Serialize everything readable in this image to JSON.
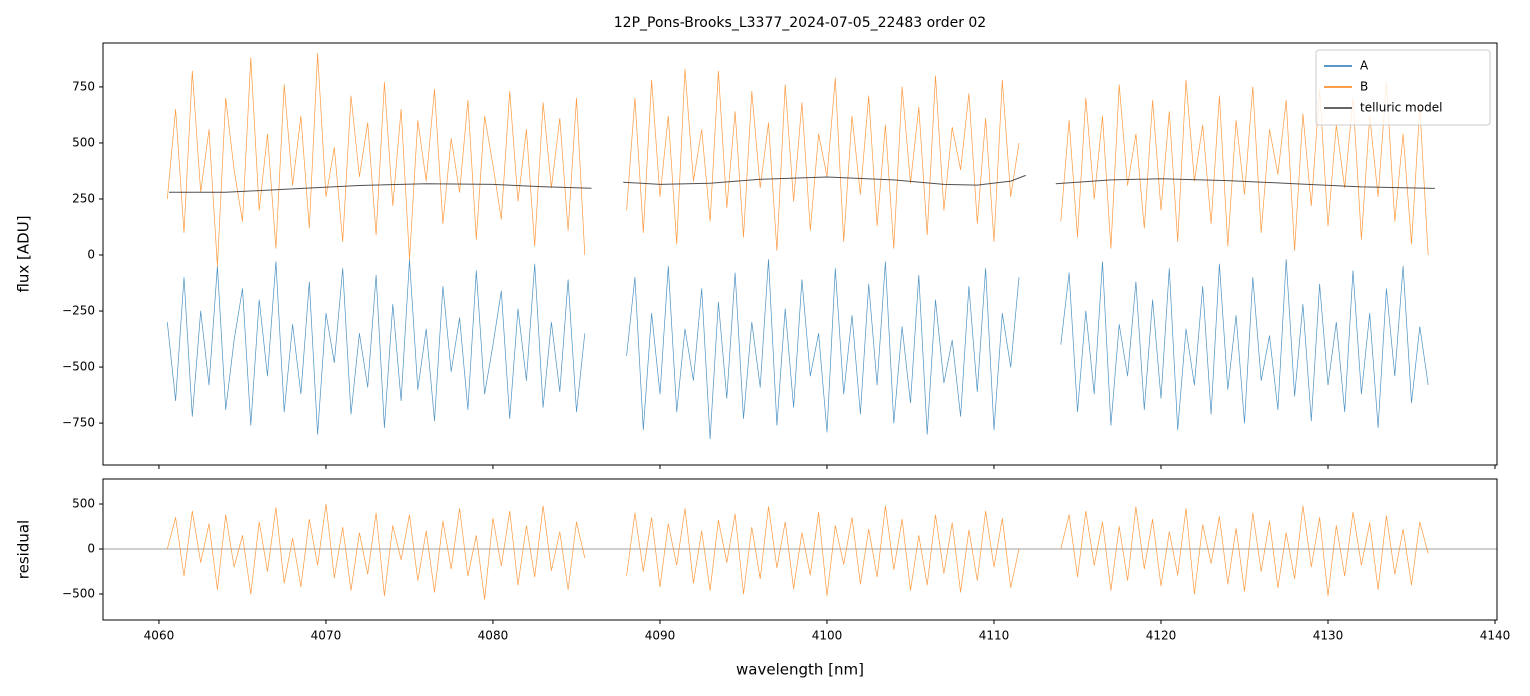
{
  "chart_data": [
    {
      "type": "line",
      "title": "12P_Pons-Brooks_L3377_2024-07-05_22483  order 02",
      "ylabel": "flux [ADU]",
      "xlim": [
        4056.65,
        4140.12
      ],
      "xticks": [
        4060,
        4070,
        4080,
        4090,
        4100,
        4110,
        4120,
        4130,
        4140
      ],
      "ylim": [
        -937,
        946
      ],
      "yticks": [
        {
          "value": -750,
          "label": "−750"
        },
        {
          "value": -500,
          "label": "−500"
        },
        {
          "value": -250,
          "label": "−250"
        },
        0,
        250,
        500,
        750
      ],
      "legend": "upper right",
      "x": [
        4060.5,
        4061,
        4061.5,
        4062,
        4062.5,
        4063,
        4063.5,
        4064,
        4064.5,
        4065,
        4065.5,
        4066,
        4066.5,
        4067,
        4067.5,
        4068,
        4068.5,
        4069,
        4069.5,
        4070,
        4070.5,
        4071,
        4071.5,
        4072,
        4072.5,
        4073,
        4073.5,
        4074,
        4074.5,
        4075,
        4075.5,
        4076,
        4076.5,
        4077,
        4077.5,
        4078,
        4078.5,
        4079,
        4079.5,
        4080,
        4080.5,
        4081,
        4081.5,
        4082,
        4082.5,
        4083,
        4083.5,
        4084,
        4084.5,
        4085,
        4085.5,
        4086.7,
        4088,
        4088.5,
        4089,
        4089.5,
        4090,
        4090.5,
        4091,
        4091.5,
        4092,
        4092.5,
        4093,
        4093.5,
        4094,
        4094.5,
        4095,
        4095.5,
        4096,
        4096.5,
        4097,
        4097.5,
        4098,
        4098.5,
        4099,
        4099.5,
        4100,
        4100.5,
        4101,
        4101.5,
        4102,
        4102.5,
        4103,
        4103.5,
        4104,
        4104.5,
        4105,
        4105.5,
        4106,
        4106.5,
        4107,
        4107.5,
        4108,
        4108.5,
        4109,
        4109.5,
        4110,
        4110.5,
        4111,
        4111.5,
        4112.6,
        4114,
        4114.5,
        4115,
        4115.5,
        4116,
        4116.5,
        4117,
        4117.5,
        4118,
        4118.5,
        4119,
        4119.5,
        4120,
        4120.5,
        4121,
        4121.5,
        4122,
        4122.5,
        4123,
        4123.5,
        4124,
        4124.5,
        4125,
        4125.5,
        4126,
        4126.5,
        4127,
        4127.5,
        4128,
        4128.5,
        4129,
        4129.5,
        4130,
        4130.5,
        4131,
        4131.5,
        4132,
        4132.5,
        4133,
        4133.5,
        4134,
        4134.5,
        4135,
        4135.5,
        4136
      ],
      "series": [
        {
          "name": "A",
          "color": "#1f77b4",
          "values": [
            -300,
            -650,
            -100,
            -720,
            -250,
            -580,
            -50,
            -690,
            -380,
            -150,
            -760,
            -200,
            -540,
            -30,
            -700,
            -310,
            -620,
            -120,
            -800,
            -260,
            -480,
            -60,
            -710,
            -350,
            -590,
            -90,
            -770,
            -220,
            -650,
            -20,
            -600,
            -330,
            -740,
            -140,
            -520,
            -280,
            -690,
            -70,
            -620,
            -400,
            -160,
            -730,
            -240,
            -560,
            -40,
            -680,
            -300,
            -610,
            -110,
            -700,
            -350,
            null,
            -450,
            -100,
            -780,
            -260,
            -620,
            -50,
            -700,
            -330,
            -560,
            -150,
            -820,
            -210,
            -640,
            -80,
            -730,
            -300,
            -590,
            -20,
            -760,
            -240,
            -680,
            -110,
            -540,
            -350,
            -790,
            -60,
            -620,
            -270,
            -710,
            -130,
            -580,
            -30,
            -750,
            -320,
            -660,
            -90,
            -800,
            -200,
            -570,
            -380,
            -720,
            -140,
            -610,
            -60,
            -780,
            -260,
            -500,
            -100,
            null,
            -400,
            -80,
            -700,
            -250,
            -620,
            -30,
            -760,
            -310,
            -540,
            -120,
            -690,
            -200,
            -640,
            -60,
            -780,
            -330,
            -580,
            -140,
            -710,
            -40,
            -600,
            -270,
            -750,
            -100,
            -560,
            -360,
            -690,
            -20,
            -630,
            -220,
            -740,
            -130,
            -580,
            -300,
            -700,
            -70,
            -620,
            -260,
            -770,
            -150,
            -540,
            -50,
            -660,
            -320,
            -580
          ]
        },
        {
          "name": "B",
          "color": "#ff7f0e",
          "values": [
            250,
            650,
            100,
            820,
            280,
            560,
            -50,
            700,
            380,
            150,
            880,
            200,
            540,
            30,
            760,
            310,
            620,
            120,
            900,
            260,
            480,
            60,
            710,
            350,
            590,
            90,
            770,
            220,
            650,
            -20,
            600,
            330,
            740,
            140,
            520,
            280,
            690,
            70,
            620,
            400,
            160,
            730,
            240,
            560,
            40,
            680,
            300,
            610,
            110,
            700,
            0,
            null,
            200,
            700,
            100,
            780,
            260,
            620,
            50,
            830,
            330,
            560,
            150,
            820,
            210,
            640,
            80,
            730,
            300,
            590,
            20,
            760,
            240,
            680,
            110,
            540,
            350,
            790,
            60,
            620,
            270,
            710,
            130,
            580,
            30,
            750,
            320,
            660,
            90,
            800,
            200,
            570,
            380,
            720,
            140,
            610,
            60,
            780,
            260,
            500,
            null,
            150,
            600,
            80,
            700,
            250,
            620,
            30,
            760,
            310,
            540,
            120,
            690,
            200,
            640,
            60,
            780,
            330,
            580,
            140,
            710,
            40,
            600,
            270,
            750,
            100,
            560,
            360,
            690,
            20,
            630,
            220,
            740,
            130,
            580,
            300,
            700,
            70,
            620,
            260,
            770,
            150,
            540,
            50,
            660,
            0
          ]
        },
        {
          "name": "telluric model",
          "color": "#333333",
          "x": [
            4060.6,
            4064,
            4068,
            4072,
            4076,
            4080,
            4083,
            4085.9,
            4087,
            4087.8,
            4090,
            4093,
            4096,
            4100,
            4104,
            4107,
            4109,
            4111,
            4111.9,
            4112.8,
            4113.7,
            4117,
            4120,
            4124,
            4128,
            4132,
            4136.4
          ],
          "values": [
            280,
            280,
            295,
            310,
            318,
            315,
            305,
            298,
            null,
            325,
            315,
            320,
            338,
            348,
            335,
            315,
            312,
            330,
            355,
            null,
            318,
            335,
            340,
            332,
            318,
            304,
            297
          ]
        }
      ]
    },
    {
      "type": "line",
      "ylabel": "residual",
      "xlabel": "wavelength [nm]",
      "xlim": [
        4056.65,
        4140.12
      ],
      "xticks": [
        4060,
        4070,
        4080,
        4090,
        4100,
        4110,
        4120,
        4130,
        4140
      ],
      "ylim": [
        -789,
        778
      ],
      "yticks": [
        {
          "value": -500,
          "label": "−500"
        },
        0,
        500
      ],
      "hline": 0,
      "x": [
        4060.5,
        4061,
        4061.5,
        4062,
        4062.5,
        4063,
        4063.5,
        4064,
        4064.5,
        4065,
        4065.5,
        4066,
        4066.5,
        4067,
        4067.5,
        4068,
        4068.5,
        4069,
        4069.5,
        4070,
        4070.5,
        4071,
        4071.5,
        4072,
        4072.5,
        4073,
        4073.5,
        4074,
        4074.5,
        4075,
        4075.5,
        4076,
        4076.5,
        4077,
        4077.5,
        4078,
        4078.5,
        4079,
        4079.5,
        4080,
        4080.5,
        4081,
        4081.5,
        4082,
        4082.5,
        4083,
        4083.5,
        4084,
        4084.5,
        4085,
        4085.5,
        4086.7,
        4088,
        4088.5,
        4089,
        4089.5,
        4090,
        4090.5,
        4091,
        4091.5,
        4092,
        4092.5,
        4093,
        4093.5,
        4094,
        4094.5,
        4095,
        4095.5,
        4096,
        4096.5,
        4097,
        4097.5,
        4098,
        4098.5,
        4099,
        4099.5,
        4100,
        4100.5,
        4101,
        4101.5,
        4102,
        4102.5,
        4103,
        4103.5,
        4104,
        4104.5,
        4105,
        4105.5,
        4106,
        4106.5,
        4107,
        4107.5,
        4108,
        4108.5,
        4109,
        4109.5,
        4110,
        4110.5,
        4111,
        4111.5,
        4112.6,
        4114,
        4114.5,
        4115,
        4115.5,
        4116,
        4116.5,
        4117,
        4117.5,
        4118,
        4118.5,
        4119,
        4119.5,
        4120,
        4120.5,
        4121,
        4121.5,
        4122,
        4122.5,
        4123,
        4123.5,
        4124,
        4124.5,
        4125,
        4125.5,
        4126,
        4126.5,
        4127,
        4127.5,
        4128,
        4128.5,
        4129,
        4129.5,
        4130,
        4130.5,
        4131,
        4131.5,
        4132,
        4132.5,
        4133,
        4133.5,
        4134,
        4134.5,
        4135,
        4135.5,
        4136
      ],
      "series": [
        {
          "color": "#ff7f0e",
          "values": [
            0,
            350,
            -300,
            420,
            -150,
            280,
            -450,
            380,
            -200,
            150,
            -500,
            300,
            -250,
            460,
            -380,
            120,
            -420,
            330,
            -180,
            500,
            -320,
            240,
            -460,
            180,
            -280,
            400,
            -520,
            260,
            -120,
            380,
            -350,
            200,
            -480,
            310,
            -220,
            450,
            -300,
            150,
            -560,
            340,
            -190,
            420,
            -400,
            260,
            -310,
            480,
            -240,
            190,
            -450,
            300,
            -100,
            null,
            -300,
            400,
            -250,
            350,
            -420,
            280,
            -180,
            450,
            -380,
            200,
            -460,
            320,
            -150,
            390,
            -500,
            240,
            -330,
            470,
            -210,
            300,
            -440,
            180,
            -290,
            410,
            -520,
            260,
            -170,
            350,
            -390,
            220,
            -310,
            480,
            -230,
            330,
            -460,
            150,
            -400,
            380,
            -270,
            290,
            -480,
            210,
            -350,
            420,
            -200,
            340,
            -430,
            0,
            null,
            0,
            380,
            -310,
            420,
            -180,
            300,
            -460,
            250,
            -350,
            470,
            -220,
            330,
            -410,
            190,
            -290,
            450,
            -500,
            270,
            -160,
            360,
            -390,
            230,
            -470,
            400,
            -250,
            310,
            -430,
            180,
            -330,
            480,
            -200,
            350,
            -520,
            260,
            -300,
            410,
            -180,
            290,
            -450,
            370,
            -280,
            220,
            -400,
            300,
            -50
          ]
        }
      ]
    }
  ]
}
